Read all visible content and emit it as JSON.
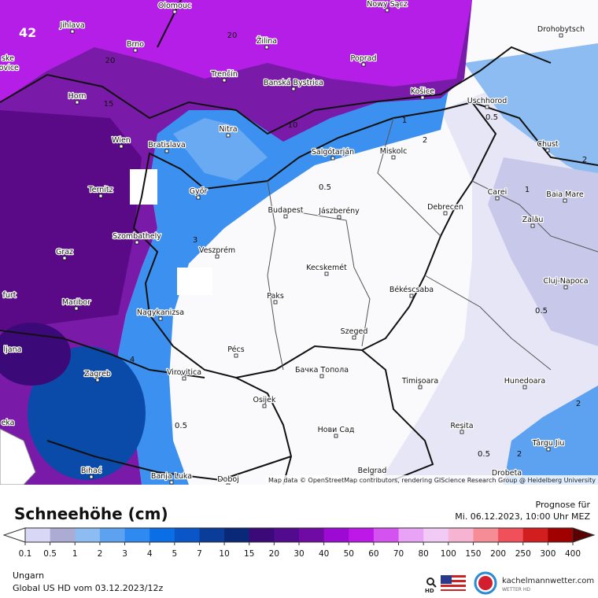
{
  "map": {
    "corner_label": "42",
    "attribution": "Map data © OpenStreetMap contributors, rendering GIScience Research Group @ Heidelberg University",
    "cities": [
      "Olomouc",
      "Nowy Sącz",
      "Jihlava",
      "Drohobytsch",
      "Brno",
      "Žilina",
      "Poprad",
      "Trenčín",
      "Banská Bystrica",
      "Horn",
      "Košice",
      "Uschhorod",
      "Nitra",
      "Wien",
      "Bratislava",
      "Salgótarján",
      "Miskolc",
      "Chust",
      "Ternitz",
      "Győr",
      "Carei",
      "Baia Mare",
      "Budapest",
      "Jászberény",
      "Debrecen",
      "Szombathely",
      "Zalău",
      "Graz",
      "Veszprém",
      "Kecskemét",
      "Cluj-Napoca",
      "Paks",
      "Békéscsaba",
      "Maribor",
      "Nagykanizsa",
      "Szeged",
      "Pécs",
      "Zagreb",
      "Virovitica",
      "Бачка Топола",
      "Timișoara",
      "Hunedoara",
      "Osijek",
      "Reșita",
      "Нови Сад",
      "Târgu Jiu",
      "Bihać",
      "Banja Luka",
      "Doboj",
      "Belgrad",
      "Drobeta"
    ],
    "edge_labels": [
      "ske",
      "jovice",
      "furt",
      "ljana",
      "eka"
    ],
    "contour_labels": [
      20,
      20,
      15,
      10,
      0.5,
      1,
      2,
      0.5,
      1,
      2,
      3,
      0.5,
      0.5,
      0.5,
      2,
      2,
      4
    ]
  },
  "legend": {
    "title": "Schneehöhe (cm)",
    "forecast_label": "Prognose für",
    "forecast_time": "Mi. 06.12.2023, 10:00 Uhr MEZ",
    "ticks": [
      0.1,
      0.5,
      1,
      2,
      3,
      4,
      5,
      7,
      10,
      15,
      20,
      30,
      40,
      50,
      60,
      70,
      80,
      100,
      150,
      200,
      250,
      300,
      400
    ],
    "colors": [
      "#d8d8f6",
      "#ababd4",
      "#8cbcf2",
      "#5ca2f0",
      "#2e8af0",
      "#0a6ee6",
      "#0a56c8",
      "#0a3c9a",
      "#0a2878",
      "#3c0a78",
      "#520a8e",
      "#700aa4",
      "#9c0ad4",
      "#be18e8",
      "#d452f0",
      "#e8a2f6",
      "#f2caf6",
      "#f6b4d2",
      "#f68c96",
      "#f0505a",
      "#d21e1e",
      "#a00000"
    ],
    "region": "Ungarn",
    "model_run": "Global US HD vom 03.12.2023/12z",
    "brand": "kachelmannwetter.com",
    "brand_sub": "WETTER HD",
    "hd_badge": "HD"
  }
}
